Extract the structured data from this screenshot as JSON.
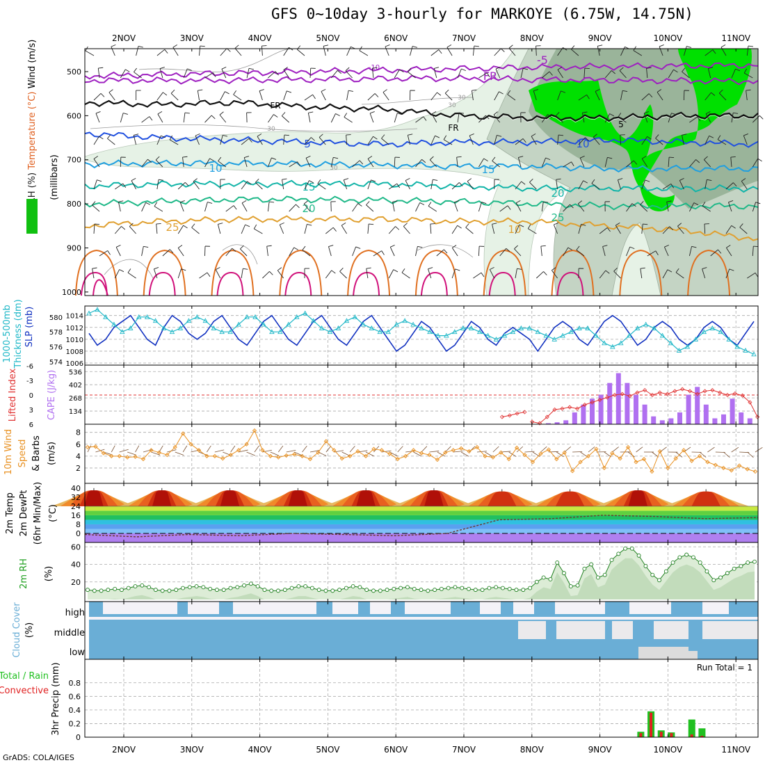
{
  "title": "GFS 0~10day 3-hourly for MARKOYE (6.75W, 14.75N)",
  "footer": "GrADS: COLA/IGES",
  "colors": {
    "temp_line_cold": "#9e1fc0",
    "temp_line_5": "#2050e0",
    "temp_line_10": "#1f9fe0",
    "temp_line_15": "#12b4a8",
    "temp_line_20": "#1fb888",
    "temp_line_25": "#e0a030",
    "temp_line_hot": "#e07020",
    "temp_line_hottest": "#d0107a",
    "rh_light": "#e6f2e6",
    "rh_mid": "#c4d4c4",
    "rh_dark": "#9ab49a",
    "rh_bright": "#00e000",
    "slp": "#1030c0",
    "thickness": "#20b8c8",
    "lifted_index": "#e03030",
    "cape": "#b070f0",
    "wind10m": "#e89020",
    "cloud": "#6aaed6",
    "precip_total": "#20c020",
    "precip_conv": "#e02020"
  },
  "chart_data": [
    {
      "panel": "upper-air",
      "type": "heatmap",
      "x_ticks": [
        "2NOV",
        "3NOV",
        "4NOV",
        "5NOV",
        "6NOV",
        "7NOV",
        "8NOV",
        "9NOV",
        "10NOV",
        "11NOV"
      ],
      "y_ticks": [
        500,
        600,
        700,
        800,
        900,
        1000
      ],
      "ylabel_parts": [
        {
          "text": "RH (%)",
          "color": "#1a1a1a"
        },
        {
          "text": "Temperature (°C)",
          "color": "#e06020"
        },
        {
          "text": "Wind (m/s)",
          "color": "#000000"
        }
      ],
      "ylabel_units": "(millibars)",
      "contours": [
        {
          "label": "-10",
          "pressure": [
            510,
            505,
            500,
            495,
            490,
            488,
            485
          ]
        },
        {
          "label": "-5",
          "pressure": [
            520,
            520,
            518,
            515,
            518,
            520,
            522
          ]
        },
        {
          "label": "FR",
          "pressure": [
            570,
            575,
            570,
            580,
            585,
            600,
            605,
            605,
            600,
            600
          ]
        },
        {
          "label": "5",
          "pressure": [
            640,
            650,
            655,
            660,
            665,
            660,
            660,
            655,
            660,
            665
          ]
        },
        {
          "label": "10",
          "pressure": [
            710,
            708,
            708,
            710,
            712,
            715,
            715,
            720,
            720,
            720
          ]
        },
        {
          "label": "15",
          "pressure": [
            760,
            755,
            755,
            755,
            755,
            760,
            765,
            765,
            765,
            765
          ]
        },
        {
          "label": "20",
          "pressure": [
            800,
            795,
            790,
            790,
            792,
            795,
            800,
            805,
            805,
            805
          ]
        },
        {
          "label": "25",
          "pressure": [
            850,
            840,
            835,
            835,
            835,
            840,
            840,
            850,
            860,
            880
          ]
        }
      ],
      "contour_labels": [
        "-10",
        "-5",
        "FR",
        "FR",
        "FR",
        "5",
        "5",
        "10",
        "10",
        "15",
        "15",
        "20",
        "20",
        "25",
        "25",
        "10",
        "30",
        "30",
        "30",
        "30"
      ]
    },
    {
      "panel": "slp-thickness",
      "type": "line",
      "y_left_ticks": [
        574,
        576,
        578,
        580
      ],
      "y_right_ticks": [
        1006,
        1008,
        1010,
        1012,
        1014
      ],
      "y_labels": [
        {
          "text": "1000-500mb",
          "color": "#20b8c8"
        },
        {
          "text": "Thickness (dm)",
          "color": "#20b8c8"
        },
        {
          "text": "SLP (mb)",
          "color": "#1030c0"
        }
      ],
      "series": [
        {
          "name": "SLP",
          "values": [
            1011,
            1009,
            1010,
            1012,
            1013,
            1014,
            1012,
            1010,
            1009,
            1012,
            1014,
            1013,
            1011,
            1010,
            1011,
            1013,
            1014,
            1012,
            1010,
            1009,
            1011,
            1013,
            1014,
            1012,
            1010,
            1009,
            1011,
            1013,
            1014,
            1012,
            1010,
            1009,
            1011,
            1013,
            1014,
            1012,
            1010,
            1008,
            1009,
            1011,
            1013,
            1012,
            1010,
            1008,
            1009,
            1011,
            1013,
            1012,
            1010,
            1009,
            1011,
            1012,
            1011,
            1010,
            1008,
            1010,
            1012,
            1013,
            1012,
            1010,
            1009,
            1011,
            1013,
            1014,
            1013,
            1011,
            1009,
            1010,
            1012,
            1013,
            1012,
            1010,
            1009,
            1010,
            1012,
            1013,
            1012,
            1010,
            1009,
            1011,
            1013
          ]
        },
        {
          "name": "Thickness",
          "values": [
            580.5,
            581,
            580,
            579,
            578,
            578.5,
            580,
            580,
            579.5,
            578.5,
            578,
            578.5,
            579.5,
            580,
            579.5,
            578.5,
            578,
            578,
            579,
            580,
            580,
            579,
            578,
            578,
            579,
            580,
            580.5,
            579.5,
            578.5,
            578,
            578.5,
            579.5,
            580,
            579,
            578.5,
            578,
            578,
            579,
            579.5,
            579,
            578.5,
            578,
            577.5,
            577.5,
            578,
            578.5,
            578.5,
            578,
            577.5,
            577,
            577.5,
            578,
            578.5,
            578.5,
            578,
            577.5,
            577,
            577.5,
            578,
            578.5,
            578.5,
            577.5,
            576.5,
            576,
            576.5,
            577.5,
            578.5,
            579,
            578.5,
            577.5,
            576.5,
            575.5,
            576,
            577,
            578,
            578.5,
            578,
            577,
            576,
            575.5,
            575
          ]
        }
      ]
    },
    {
      "panel": "lifted-index-cape",
      "type": "bar",
      "y_left_ticks": [
        6,
        3,
        0,
        -3,
        -6
      ],
      "y_right_ticks": [
        134,
        268,
        402,
        536
      ],
      "y_labels": [
        {
          "text": "Lifted Index",
          "color": "#e03030"
        },
        {
          "text": "CAPE (J/kg)",
          "color": "#b070f0"
        }
      ],
      "cape_values": [
        10,
        20,
        40,
        120,
        200,
        260,
        300,
        420,
        520,
        420,
        300,
        200,
        80,
        40,
        60,
        120,
        300,
        380,
        200,
        60,
        100,
        260,
        120,
        60
      ],
      "lifted_index_values": [
        4.5,
        4.2,
        3.8,
        3.5,
        5.5,
        5.8,
        4.5,
        3.0,
        2.8,
        2.5,
        2.8,
        2.0,
        1.5,
        1.0,
        0.5,
        0.0,
        -0.2,
        0.2,
        -0.5,
        -1.0,
        0.0,
        -0.5,
        -0.2,
        -0.8,
        -1.2,
        -0.8,
        -0.2,
        -0.8,
        -1.0,
        -0.5,
        0.0,
        -0.3,
        0.1,
        1.5,
        4.5
      ]
    },
    {
      "panel": "10m-wind",
      "type": "line",
      "y_ticks": [
        2,
        4,
        6,
        8
      ],
      "y_labels": [
        {
          "text": "10m Wind",
          "color": "#e89020"
        },
        {
          "text": "Speed",
          "color": "#e89020"
        },
        {
          "text": "& Barbs",
          "color": "#000000"
        },
        {
          "text": "(m/s)",
          "color": "#000000"
        }
      ],
      "values": [
        5.5,
        5.6,
        4.5,
        4.0,
        4.0,
        3.8,
        3.9,
        3.5,
        5.0,
        4.6,
        4.2,
        5.5,
        7.8,
        6.0,
        5.0,
        4.0,
        4.0,
        3.6,
        4.2,
        5.0,
        6.0,
        8.3,
        5.0,
        4.0,
        3.8,
        4.1,
        4.3,
        4.0,
        3.5,
        4.6,
        6.5,
        5.0,
        3.6,
        4.0,
        4.8,
        4.0,
        5.2,
        5.0,
        4.4,
        3.5,
        4.0,
        5.0,
        4.5,
        4.2,
        3.4,
        4.6,
        5.0,
        5.3,
        4.8,
        5.5,
        4.0,
        3.8,
        4.6,
        3.5,
        5.4,
        4.2,
        3.0,
        4.4,
        5.1,
        3.5,
        4.6,
        1.5,
        3.0,
        4.0,
        5.2,
        2.0,
        4.5,
        3.6,
        5.5,
        3.0,
        3.5,
        1.4,
        4.8,
        2.0,
        3.6,
        5.0,
        3.2,
        4.0,
        3.0,
        2.5,
        2.0,
        1.6,
        2.4,
        1.8,
        1.4
      ]
    },
    {
      "panel": "2m-temp",
      "type": "area",
      "y_ticks": [
        0,
        8,
        16,
        24,
        32,
        40
      ],
      "y_labels": [
        {
          "text": "2m Temp",
          "color": "#000000"
        },
        {
          "text": "2m DewPt",
          "color": "#000000"
        },
        {
          "text": "(6hr Min/Max)",
          "color": "#000000"
        },
        {
          "text": "(°C)",
          "color": "#000000"
        }
      ],
      "temp_max": [
        38,
        38,
        38,
        38,
        38,
        38,
        37,
        37,
        38,
        37
      ],
      "temp_min": [
        24,
        24,
        24,
        24,
        24,
        24,
        24,
        25,
        25,
        25
      ],
      "dewpoint": [
        -1,
        -3,
        -1,
        -2,
        0,
        -1,
        -2,
        0,
        12,
        13,
        16,
        15,
        13,
        14
      ]
    },
    {
      "panel": "2m-rh",
      "type": "area",
      "y_ticks": [
        20,
        40,
        60
      ],
      "y_labels": [
        {
          "text": "2m RH",
          "color": "#20a020"
        },
        {
          "text": "(%)",
          "color": "#000000"
        }
      ],
      "values": [
        11,
        10,
        10,
        11,
        12,
        11,
        13,
        15,
        16,
        14,
        11,
        10,
        10,
        11,
        13,
        14,
        15,
        14,
        12,
        11,
        11,
        13,
        14,
        16,
        18,
        15,
        11,
        10,
        10,
        11,
        13,
        15,
        15,
        13,
        11,
        10,
        10,
        11,
        13,
        15,
        14,
        11,
        10,
        10,
        11,
        12,
        13,
        14,
        12,
        11,
        10,
        11,
        12,
        13,
        14,
        13,
        12,
        11,
        11,
        13,
        14,
        13,
        12,
        11,
        11,
        13,
        20,
        25,
        23,
        42,
        30,
        15,
        16,
        35,
        40,
        25,
        28,
        45,
        52,
        58,
        58,
        50,
        38,
        28,
        22,
        32,
        42,
        48,
        51,
        48,
        42,
        32,
        22,
        25,
        30,
        35,
        38,
        42,
        43
      ]
    },
    {
      "panel": "cloud-cover",
      "type": "heatmap",
      "row_labels": [
        "high",
        "middle",
        "low"
      ],
      "y_labels": [
        {
          "text": "Cloud Cover",
          "color": "#6aaed6"
        },
        {
          "text": "(%)",
          "color": "#000000"
        }
      ]
    },
    {
      "panel": "precip",
      "type": "bar",
      "y_ticks": [
        0,
        0.2,
        0.4,
        0.6,
        0.8
      ],
      "y_labels": [
        {
          "text": "Total / Rain",
          "color": "#20c020"
        },
        {
          "text": "Convective",
          "color": "#e02020"
        },
        {
          "text": "3hr Precip (mm)",
          "color": "#000000"
        }
      ],
      "run_total": "Run Total = 1",
      "bars": [
        {
          "day": 9.55,
          "total": 0.08,
          "conv": 0.06
        },
        {
          "day": 9.7,
          "total": 0.38,
          "conv": 0.36
        },
        {
          "day": 9.85,
          "total": 0.1,
          "conv": 0.08
        },
        {
          "day": 10.0,
          "total": 0.07,
          "conv": 0.06
        },
        {
          "day": 10.3,
          "total": 0.26,
          "conv": 0.04
        },
        {
          "day": 10.45,
          "total": 0.13,
          "conv": 0.02
        }
      ]
    }
  ]
}
